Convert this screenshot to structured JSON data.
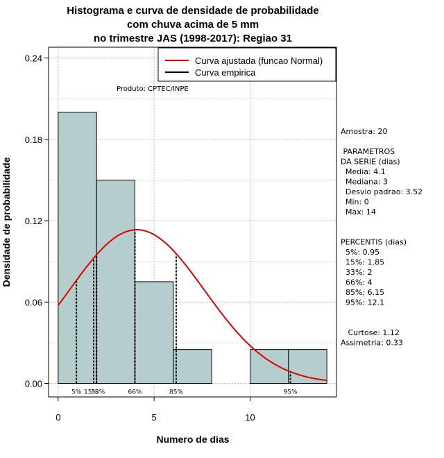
{
  "chart_data": {
    "type": "histogram",
    "title_lines": [
      "Histograma e curva de densidade de probabilidade",
      "com chuva acima de 5 mm",
      "no trimestre JAS (1998-2017): Regiao 31"
    ],
    "xlabel": "Numero de dias",
    "ylabel": "Densidade de probabilidade",
    "xlim": [
      -0.5,
      14.5
    ],
    "ylim": [
      -0.01,
      0.248
    ],
    "x_ticks": [
      0,
      5,
      10
    ],
    "y_ticks": [
      "0.00",
      "0.06",
      "0.12",
      "0.18",
      "0.24"
    ],
    "bins": [
      {
        "start": 0,
        "end": 2,
        "density": 0.2
      },
      {
        "start": 2,
        "end": 4,
        "density": 0.15
      },
      {
        "start": 4,
        "end": 6,
        "density": 0.075
      },
      {
        "start": 6,
        "end": 8,
        "density": 0.025
      },
      {
        "start": 8,
        "end": 10,
        "density": 0.0
      },
      {
        "start": 10,
        "end": 12,
        "density": 0.025
      },
      {
        "start": 12,
        "end": 14,
        "density": 0.025
      }
    ],
    "normal_fit": {
      "mean": 4.1,
      "sd": 3.52,
      "color": "#e00000"
    },
    "bar_color": "#b6cdcd",
    "percentile_lines": [
      {
        "label": "5%",
        "value": 0.95
      },
      {
        "label": "15%",
        "value": 1.85
      },
      {
        "label": "33%",
        "value": 2
      },
      {
        "label": "66%",
        "value": 4
      },
      {
        "label": "85%",
        "value": 6.15
      },
      {
        "label": "95%",
        "value": 12.1
      }
    ],
    "legend": [
      {
        "label": "Curva ajustada (funcao Normal)",
        "color": "#e00000"
      },
      {
        "label": "Curva empirica",
        "color": "#000000"
      }
    ],
    "source_note": "Produto: CPTEC/INPE",
    "side_panel": [
      "Amostra: 20",
      "",
      " PARAMETROS",
      "DA SERIE (dias)",
      "  Media: 4.1",
      "  Mediana: 3",
      "  Desvio padrao: 3.52",
      "  Min: 0",
      "  Max: 14",
      "",
      "",
      "PERCENTIS (dias)",
      "  5%: 0.95",
      "  15%: 1.85",
      "  33%: 2",
      "  66%: 4",
      "  85%: 6.15",
      "  95%: 12.1",
      "",
      "",
      "   Curtose: 1.12",
      "Assimetria: 0.33"
    ]
  }
}
